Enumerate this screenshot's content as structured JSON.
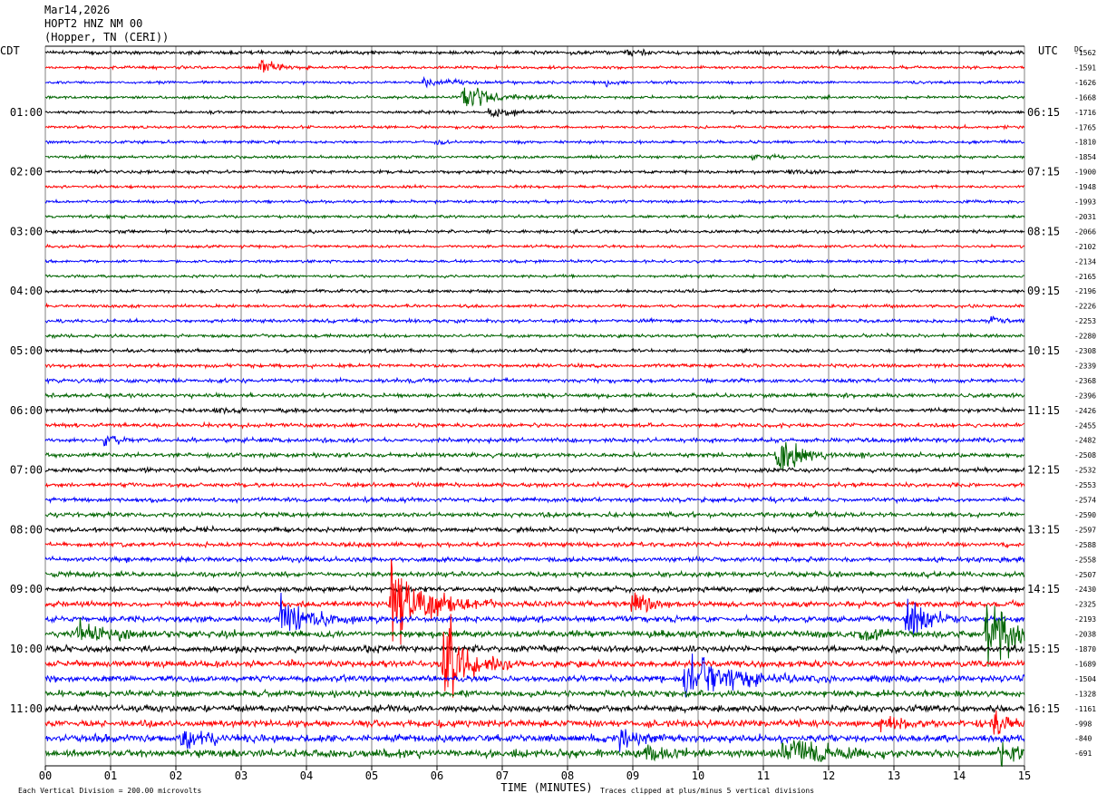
{
  "header": {
    "date": "Mar14,2026",
    "station": "HOPT2 HNZ NM 00",
    "location": "(Hopper, TN (CERI))"
  },
  "left_tz": "CDT",
  "right_tz": "UTC",
  "dc_label": "DC",
  "footer": {
    "scale_note": "Each Vertical Division =  200.00 microvolts",
    "clip_note": "Traces clipped at plus/minus 5 vertical divisions",
    "xlabel": "TIME (MINUTES)"
  },
  "colors": {
    "trace": [
      "#000000",
      "#ff0000",
      "#0000ff",
      "#006400"
    ],
    "grid": "#000000"
  },
  "chart_data": {
    "type": "line",
    "title": "HOPT2 HNZ NM 00",
    "xlabel": "TIME (MINUTES)",
    "ylabel": "",
    "x_ticks": [
      "00",
      "01",
      "02",
      "03",
      "04",
      "05",
      "06",
      "07",
      "08",
      "09",
      "10",
      "11",
      "12",
      "13",
      "14",
      "15"
    ],
    "xlim": [
      0,
      15
    ],
    "grid": true,
    "num_traces": 48,
    "trace_minutes": 15,
    "series_colors": [
      "black",
      "red",
      "blue",
      "green"
    ],
    "left_time_labels": [
      {
        "row": 4,
        "label": "01:00"
      },
      {
        "row": 8,
        "label": "02:00"
      },
      {
        "row": 12,
        "label": "03:00"
      },
      {
        "row": 16,
        "label": "04:00"
      },
      {
        "row": 20,
        "label": "05:00"
      },
      {
        "row": 24,
        "label": "06:00"
      },
      {
        "row": 28,
        "label": "07:00"
      },
      {
        "row": 32,
        "label": "08:00"
      },
      {
        "row": 36,
        "label": "09:00"
      },
      {
        "row": 40,
        "label": "10:00"
      },
      {
        "row": 44,
        "label": "11:00"
      }
    ],
    "right_time_labels": [
      {
        "row": 4,
        "label": "06:15"
      },
      {
        "row": 8,
        "label": "07:15"
      },
      {
        "row": 12,
        "label": "08:15"
      },
      {
        "row": 16,
        "label": "09:15"
      },
      {
        "row": 20,
        "label": "10:15"
      },
      {
        "row": 24,
        "label": "11:15"
      },
      {
        "row": 28,
        "label": "12:15"
      },
      {
        "row": 32,
        "label": "13:15"
      },
      {
        "row": 36,
        "label": "14:15"
      },
      {
        "row": 40,
        "label": "15:15"
      },
      {
        "row": 44,
        "label": "16:15"
      }
    ],
    "dc_offsets": [
      "-1562",
      "-1591",
      "-1626",
      "-1668",
      "-1716",
      "-1765",
      "-1810",
      "-1854",
      "-1900",
      "-1948",
      "-1993",
      "-2031",
      "-2066",
      "-2102",
      "-2134",
      "-2165",
      "-2196",
      "-2226",
      "-2253",
      "-2280",
      "-2308",
      "-2339",
      "-2368",
      "-2396",
      "-2426",
      "-2455",
      "-2482",
      "-2508",
      "-2532",
      "-2553",
      "-2574",
      "-2590",
      "-2597",
      "-2588",
      "-2558",
      "-2507",
      "-2430",
      "-2325",
      "-2193",
      "-2038",
      "-1870",
      "-1689",
      "-1504",
      "-1328",
      "-1161",
      "-998",
      "-840",
      "-691"
    ],
    "noise_levels": [
      1.3,
      1.0,
      1.0,
      1.0,
      1.0,
      1.0,
      1.0,
      1.0,
      1.1,
      1.0,
      1.0,
      1.0,
      1.1,
      1.0,
      1.0,
      1.0,
      1.1,
      1.1,
      1.3,
      1.2,
      1.2,
      1.3,
      1.4,
      1.4,
      1.4,
      1.4,
      1.5,
      1.5,
      1.5,
      1.5,
      1.6,
      1.6,
      1.7,
      1.6,
      1.7,
      1.8,
      1.9,
      2.0,
      2.1,
      2.3,
      2.3,
      2.2,
      2.2,
      2.2,
      2.3,
      2.4,
      2.6,
      2.8
    ],
    "events": [
      {
        "row": 0,
        "t": 8.9,
        "amp": 3,
        "dur": 0.3
      },
      {
        "row": 1,
        "t": 3.3,
        "amp": 8,
        "dur": 0.4
      },
      {
        "row": 2,
        "t": 5.8,
        "amp": 3,
        "dur": 0.8
      },
      {
        "row": 2,
        "t": 8.6,
        "amp": 6,
        "dur": 0.1
      },
      {
        "row": 3,
        "t": 6.4,
        "amp": 10,
        "dur": 0.7
      },
      {
        "row": 4,
        "t": 6.8,
        "amp": 7,
        "dur": 0.4
      },
      {
        "row": 6,
        "t": 6.0,
        "amp": 2,
        "dur": 0.2
      },
      {
        "row": 7,
        "t": 10.8,
        "amp": 2,
        "dur": 0.3
      },
      {
        "row": 8,
        "t": 11.4,
        "amp": 2,
        "dur": 0.3
      },
      {
        "row": 18,
        "t": 14.5,
        "amp": 3,
        "dur": 0.3
      },
      {
        "row": 24,
        "t": 2.6,
        "amp": 4,
        "dur": 0.3
      },
      {
        "row": 26,
        "t": 0.9,
        "amp": 5,
        "dur": 0.3
      },
      {
        "row": 27,
        "t": 11.2,
        "amp": 14,
        "dur": 0.6
      },
      {
        "row": 31,
        "t": 11.7,
        "amp": 4,
        "dur": 0.2
      },
      {
        "row": 37,
        "t": 5.3,
        "amp": 40,
        "dur": 0.7
      },
      {
        "row": 37,
        "t": 9.0,
        "amp": 12,
        "dur": 0.4
      },
      {
        "row": 38,
        "t": 3.6,
        "amp": 15,
        "dur": 0.8
      },
      {
        "row": 38,
        "t": 13.2,
        "amp": 20,
        "dur": 0.4
      },
      {
        "row": 39,
        "t": 0.5,
        "amp": 10,
        "dur": 0.6
      },
      {
        "row": 39,
        "t": 14.4,
        "amp": 25,
        "dur": 0.8
      },
      {
        "row": 39,
        "t": 12.5,
        "amp": 5,
        "dur": 0.6
      },
      {
        "row": 41,
        "t": 6.1,
        "amp": 40,
        "dur": 0.5
      },
      {
        "row": 42,
        "t": 9.8,
        "amp": 20,
        "dur": 1.0
      },
      {
        "row": 45,
        "t": 12.8,
        "amp": 6,
        "dur": 0.4
      },
      {
        "row": 45,
        "t": 14.5,
        "amp": 12,
        "dur": 0.3
      },
      {
        "row": 46,
        "t": 2.1,
        "amp": 10,
        "dur": 0.5
      },
      {
        "row": 46,
        "t": 8.8,
        "amp": 10,
        "dur": 0.4
      },
      {
        "row": 47,
        "t": 11.3,
        "amp": 12,
        "dur": 0.8
      },
      {
        "row": 47,
        "t": 14.6,
        "amp": 15,
        "dur": 0.4
      },
      {
        "row": 47,
        "t": 9.2,
        "amp": 6,
        "dur": 0.4
      }
    ]
  }
}
